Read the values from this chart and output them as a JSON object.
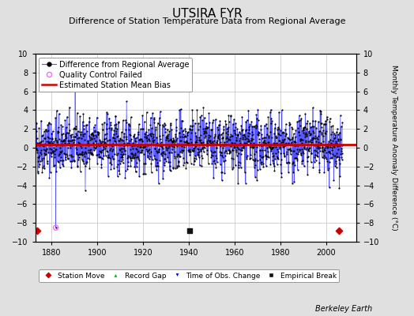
{
  "title": "UTSIRA FYR",
  "subtitle": "Difference of Station Temperature Data from Regional Average",
  "ylabel_right": "Monthly Temperature Anomaly Difference (°C)",
  "xlim": [
    1873,
    2013
  ],
  "ylim": [
    -10,
    10
  ],
  "yticks": [
    -10,
    -8,
    -6,
    -4,
    -2,
    0,
    2,
    4,
    6,
    8,
    10
  ],
  "xticks": [
    1880,
    1900,
    1920,
    1940,
    1960,
    1980,
    2000
  ],
  "bias_line_y": 0.3,
  "bias_line_color": "#cc0000",
  "data_line_color": "#5555ff",
  "dot_color": "#000000",
  "qc_fail_color": "#ff66ff",
  "station_move_color": "#cc0000",
  "record_gap_color": "#00aa00",
  "tobs_change_color": "#0000cc",
  "empirical_break_color": "#111111",
  "background_color": "#e0e0e0",
  "plot_bg_color": "#ffffff",
  "grid_color": "#c0c0c0",
  "seed": 42,
  "n_points": 1608,
  "start_year": 1873.0,
  "end_year": 2007.0,
  "spike_year": 1882.0,
  "spike_value": -8.5,
  "qc_fail_year": 1882.0,
  "qc_fail_value": -8.5,
  "station_move_year": 1873.8,
  "empirical_break_year": 1940.5,
  "station_move2_year": 2005.5,
  "watermark": "Berkeley Earth",
  "title_fontsize": 11,
  "subtitle_fontsize": 8,
  "tick_fontsize": 7,
  "legend_fontsize": 7,
  "watermark_fontsize": 7
}
